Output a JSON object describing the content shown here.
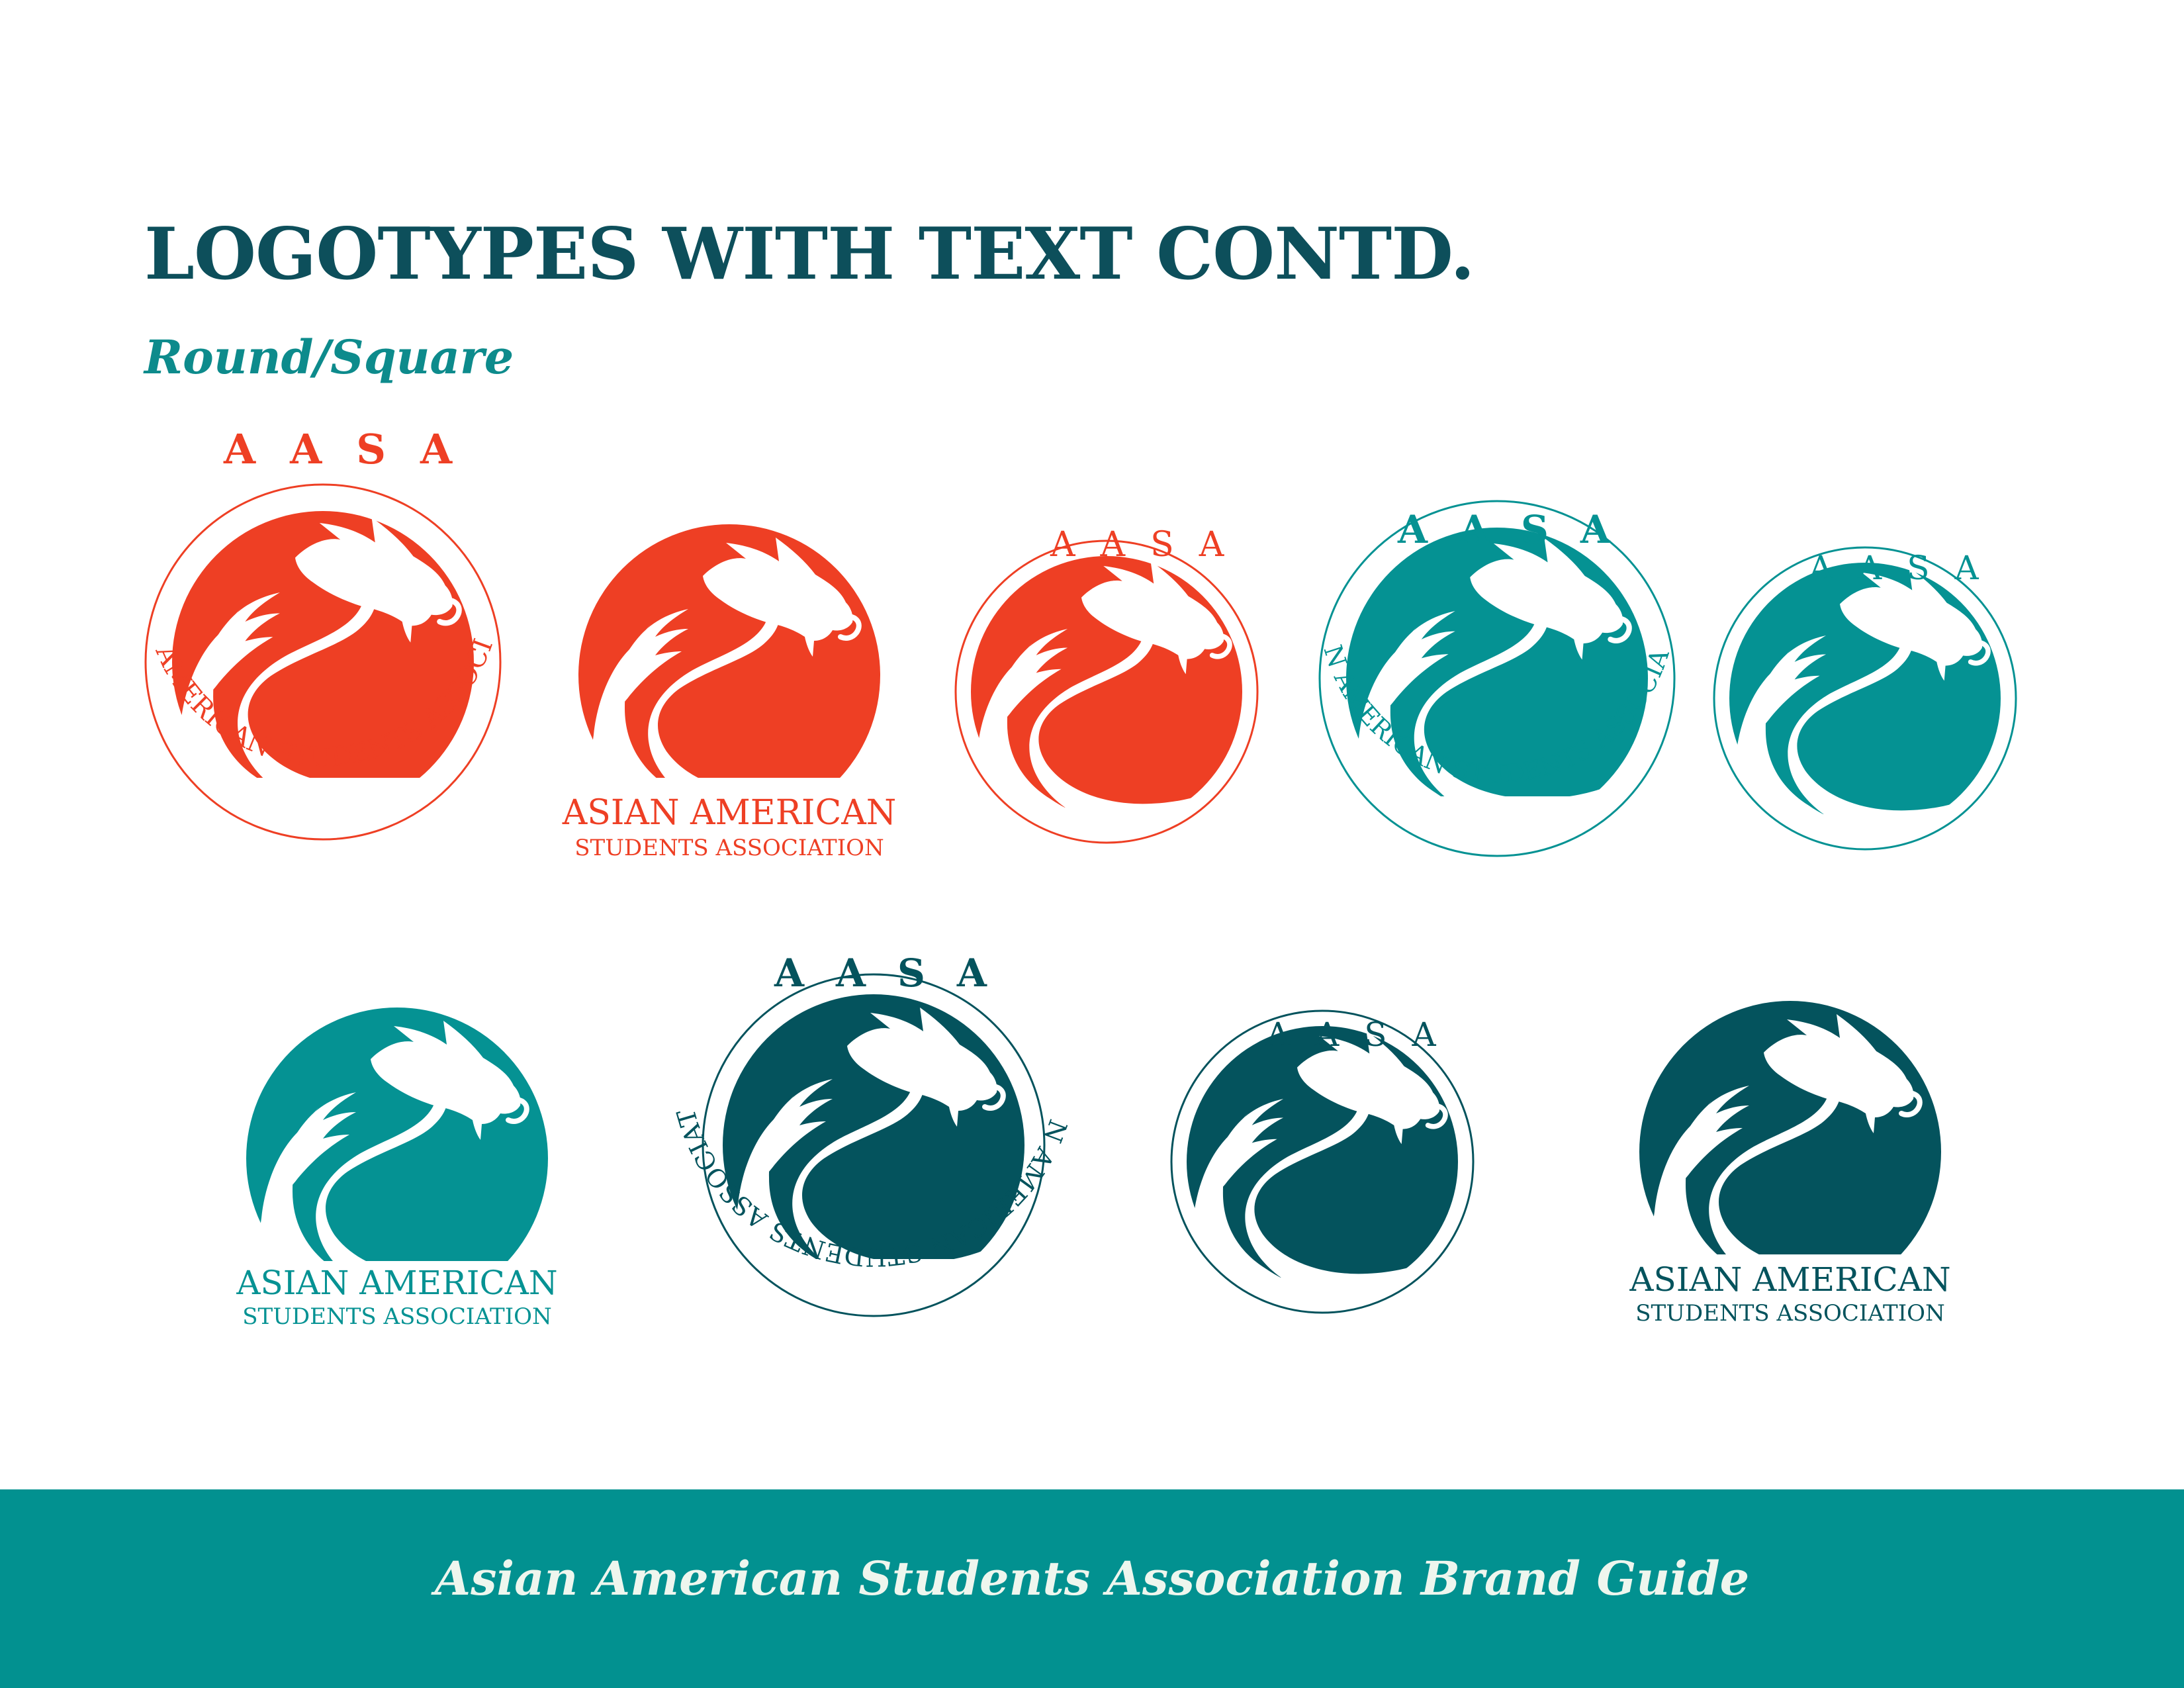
{
  "page": {
    "title": "LOGOTYPES WITH TEXT CONTD.",
    "subtitle": "Round/Square"
  },
  "logo": {
    "acronym": "AASA",
    "name_line1": "ASIAN AMERICAN",
    "name_line2": "STUDENTS ASSOCIATION",
    "name_full": "ASIAN AMERICAN STUDENTS ASSOCIATION"
  },
  "colors": {
    "red": "#ee3f24",
    "teal": "#059293",
    "dark_teal": "#04535d",
    "title": "#0d4f5b",
    "subtitle": "#0d8b8c",
    "footer_bg": "#029190",
    "footer_text": "#eef6ee"
  },
  "footer": {
    "text": "Asian American Students Association Brand Guide"
  }
}
